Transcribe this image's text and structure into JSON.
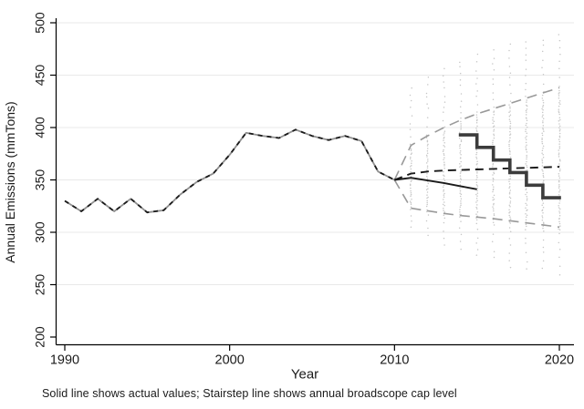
{
  "figure": {
    "title": "",
    "footnote": "Solid line shows actual values; Stairstep line shows annual broadscope cap level"
  },
  "chart_data": {
    "type": "line",
    "title": "",
    "xlabel": "Year",
    "ylabel": "Annual Emissions (mmTons)",
    "xlim": [
      1990,
      2020
    ],
    "ylim": [
      200,
      500
    ],
    "xticks": [
      1990,
      2000,
      2010,
      2020
    ],
    "yticks": [
      200,
      250,
      300,
      350,
      400,
      450,
      500
    ],
    "gridline_values": [
      250,
      300,
      350,
      400,
      450,
      500
    ],
    "grid": "horizontal-light",
    "legend_position": "none",
    "annotations": [
      "Solid line shows actual values; Stairstep line shows annual broadscope cap level"
    ],
    "colors": {
      "axis": "#000000",
      "grid": "#e9e9e9",
      "actual_line": "#1a1a1a",
      "history_underlay": "#909090",
      "forecast_central": "#1a1a1a",
      "forecast_band": "#999999",
      "cap_stairstep": "#3c3c3c",
      "simulation_dots": "#c6c6c6",
      "text": "#1a1a1a"
    },
    "series": [
      {
        "name": "actual_emissions",
        "label": "Solid line (actual values)",
        "style": "solid",
        "history_overlay_end": 2010,
        "x": [
          1990,
          1991,
          1992,
          1993,
          1994,
          1995,
          1996,
          1997,
          1998,
          1999,
          2000,
          2001,
          2002,
          2003,
          2004,
          2005,
          2006,
          2007,
          2008,
          2009,
          2010,
          2011,
          2012,
          2013,
          2014,
          2015
        ],
        "values": [
          330,
          320,
          332,
          320,
          332,
          319,
          321,
          336,
          348,
          356,
          374,
          395,
          392,
          390,
          398,
          392,
          388,
          392,
          387,
          358,
          350,
          352,
          349.5,
          347,
          344,
          341
        ]
      },
      {
        "name": "forecast_central",
        "label": "Central forecast (black dashed)",
        "style": "dashed",
        "x": [
          2010,
          2011,
          2012,
          2013,
          2014,
          2015,
          2016,
          2017,
          2018,
          2019,
          2020
        ],
        "values": [
          350,
          356,
          358,
          359,
          359.5,
          360,
          360.5,
          361,
          361.5,
          362,
          362.5
        ]
      },
      {
        "name": "forecast_upper_band",
        "label": "Upper uncertainty bound (gray dashed)",
        "style": "dashed",
        "x": [
          2010,
          2011,
          2012,
          2013,
          2014,
          2015,
          2016,
          2017,
          2018,
          2019,
          2020
        ],
        "values": [
          350,
          383,
          392,
          400,
          407,
          413,
          418,
          423,
          428,
          433,
          438
        ]
      },
      {
        "name": "forecast_lower_band",
        "label": "Lower uncertainty bound (gray dashed)",
        "style": "dashed",
        "x": [
          2010,
          2011,
          2012,
          2013,
          2014,
          2015,
          2016,
          2017,
          2018,
          2019,
          2020
        ],
        "values": [
          350,
          323,
          320.5,
          318,
          316,
          314.5,
          313,
          311,
          309,
          307,
          305
        ]
      },
      {
        "name": "broadscope_cap_stairstep",
        "label": "Annual broadscope cap level (stairstep)",
        "style": "stairstep",
        "step_start_years": [
          2014,
          2015,
          2016,
          2017,
          2018,
          2019
        ],
        "step_end_year": 2020,
        "values": [
          393,
          381,
          369,
          357,
          345,
          333
        ]
      }
    ],
    "simulation_dot_columns": {
      "description": "vertical dotted columns of simulation draws, one per forecast year",
      "years": [
        2011,
        2012,
        2013,
        2014,
        2015,
        2016,
        2017,
        2018,
        2019,
        2020
      ],
      "dense_range": [
        [
          324,
          381
        ],
        [
          320,
          390
        ],
        [
          317,
          398
        ],
        [
          314,
          406
        ],
        [
          312,
          412
        ],
        [
          310,
          417
        ],
        [
          308,
          422
        ],
        [
          306,
          427
        ],
        [
          304,
          431
        ],
        [
          302,
          436
        ]
      ],
      "sparse_range": [
        [
          300,
          442
        ],
        [
          290,
          452
        ],
        [
          283,
          460
        ],
        [
          277,
          467
        ],
        [
          272,
          472
        ],
        [
          268,
          477
        ],
        [
          264,
          481
        ],
        [
          261,
          484
        ],
        [
          258,
          487
        ],
        [
          255,
          490
        ]
      ]
    }
  }
}
